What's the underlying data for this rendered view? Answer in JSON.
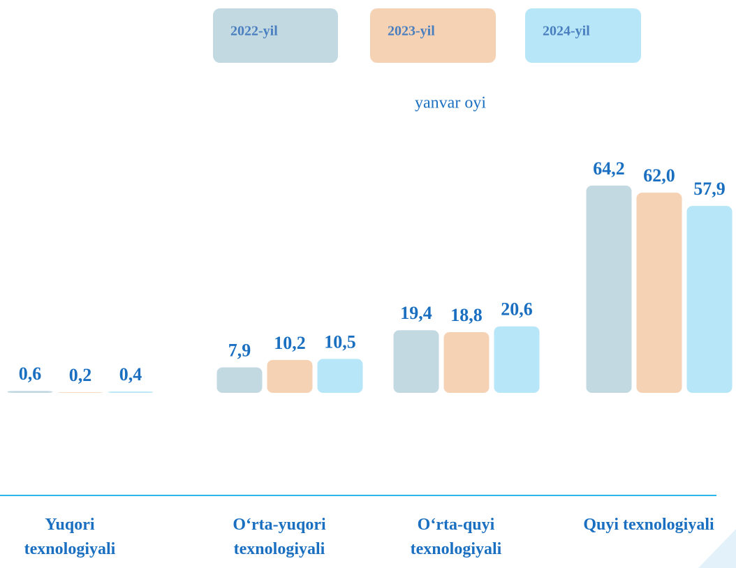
{
  "chart_data": {
    "type": "bar",
    "subtitle": "yanvar oyi",
    "categories": [
      "Yuqori texnologiyali",
      "O‘rta-yuqori texnologiyali",
      "O‘rta-quyi texnologiyali",
      "Quyi texnologiyali"
    ],
    "series": [
      {
        "name": "2022-yil",
        "color": "#c3d9e2",
        "values": [
          0.6,
          7.9,
          19.4,
          64.2
        ],
        "value_labels": [
          "0,6",
          "7,9",
          "19,4",
          "64,2"
        ]
      },
      {
        "name": "2023-yil",
        "color": "#f6d2b5",
        "values": [
          0.2,
          10.2,
          18.8,
          62.0
        ],
        "value_labels": [
          "0,2",
          "10,2",
          "18,8",
          "62,0"
        ]
      },
      {
        "name": "2024-yil",
        "color": "#b6e6f8",
        "values": [
          0.4,
          10.5,
          20.6,
          57.9
        ],
        "value_labels": [
          "0,4",
          "10,5",
          "20,6",
          "57,9"
        ]
      }
    ]
  }
}
